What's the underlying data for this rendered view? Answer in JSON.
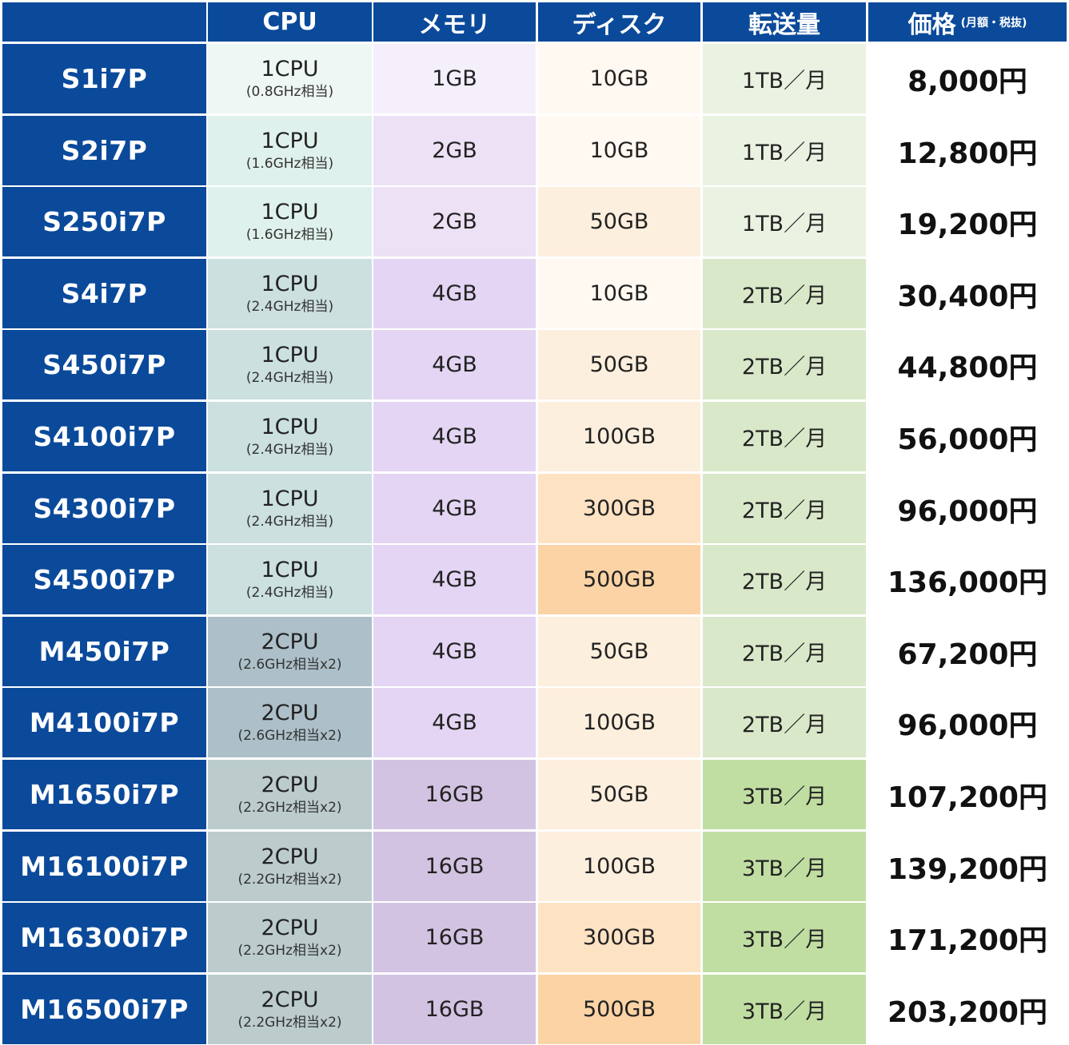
{
  "header": {
    "corner": "",
    "cpu": "CPU",
    "memory": "メモリ",
    "disk": "ディスク",
    "transfer": "転送量",
    "price": "価格",
    "price_note": "(月額・税抜)"
  },
  "colors": {
    "header_bg": "#0b4a9a",
    "header_text": "#ffffff",
    "name_bg": "#0b4a9a",
    "price_bg": "#ffffff",
    "cpu_levels": [
      "#eef7f4",
      "#dff1ec",
      "#cbe0df",
      "#adc0c9",
      "#bccccd"
    ],
    "memory_levels": [
      "#f4effb",
      "#ece1f5",
      "#e3d5f3",
      "#d2c3e2"
    ],
    "disk_levels": [
      "#fff9f2",
      "#fdefdd",
      "#fde2c4",
      "#fbd3a5"
    ],
    "transfer_levels": [
      "#eaf2e2",
      "#d9e8c9",
      "#c1dea2"
    ]
  },
  "rows": [
    {
      "name": "S1i7P",
      "cpu": "1CPU",
      "cpu_note": "(0.8GHz相当)",
      "memory": "1GB",
      "disk": "10GB",
      "transfer": "1TB／月",
      "price": "8,000円",
      "cpu_level": 0,
      "memory_level": 0,
      "disk_level": 0,
      "transfer_level": 0
    },
    {
      "name": "S2i7P",
      "cpu": "1CPU",
      "cpu_note": "(1.6GHz相当)",
      "memory": "2GB",
      "disk": "10GB",
      "transfer": "1TB／月",
      "price": "12,800円",
      "cpu_level": 1,
      "memory_level": 1,
      "disk_level": 0,
      "transfer_level": 0
    },
    {
      "name": "S250i7P",
      "cpu": "1CPU",
      "cpu_note": "(1.6GHz相当)",
      "memory": "2GB",
      "disk": "50GB",
      "transfer": "1TB／月",
      "price": "19,200円",
      "cpu_level": 1,
      "memory_level": 1,
      "disk_level": 1,
      "transfer_level": 0
    },
    {
      "name": "S4i7P",
      "cpu": "1CPU",
      "cpu_note": "(2.4GHz相当)",
      "memory": "4GB",
      "disk": "10GB",
      "transfer": "2TB／月",
      "price": "30,400円",
      "cpu_level": 2,
      "memory_level": 2,
      "disk_level": 0,
      "transfer_level": 1
    },
    {
      "name": "S450i7P",
      "cpu": "1CPU",
      "cpu_note": "(2.4GHz相当)",
      "memory": "4GB",
      "disk": "50GB",
      "transfer": "2TB／月",
      "price": "44,800円",
      "cpu_level": 2,
      "memory_level": 2,
      "disk_level": 1,
      "transfer_level": 1
    },
    {
      "name": "S4100i7P",
      "cpu": "1CPU",
      "cpu_note": "(2.4GHz相当)",
      "memory": "4GB",
      "disk": "100GB",
      "transfer": "2TB／月",
      "price": "56,000円",
      "cpu_level": 2,
      "memory_level": 2,
      "disk_level": 1,
      "transfer_level": 1
    },
    {
      "name": "S4300i7P",
      "cpu": "1CPU",
      "cpu_note": "(2.4GHz相当)",
      "memory": "4GB",
      "disk": "300GB",
      "transfer": "2TB／月",
      "price": "96,000円",
      "cpu_level": 2,
      "memory_level": 2,
      "disk_level": 2,
      "transfer_level": 1
    },
    {
      "name": "S4500i7P",
      "cpu": "1CPU",
      "cpu_note": "(2.4GHz相当)",
      "memory": "4GB",
      "disk": "500GB",
      "transfer": "2TB／月",
      "price": "136,000円",
      "cpu_level": 2,
      "memory_level": 2,
      "disk_level": 3,
      "transfer_level": 1
    },
    {
      "name": "M450i7P",
      "cpu": "2CPU",
      "cpu_note": "(2.6GHz相当x2)",
      "memory": "4GB",
      "disk": "50GB",
      "transfer": "2TB／月",
      "price": "67,200円",
      "cpu_level": 3,
      "memory_level": 2,
      "disk_level": 1,
      "transfer_level": 1
    },
    {
      "name": "M4100i7P",
      "cpu": "2CPU",
      "cpu_note": "(2.6GHz相当x2)",
      "memory": "4GB",
      "disk": "100GB",
      "transfer": "2TB／月",
      "price": "96,000円",
      "cpu_level": 3,
      "memory_level": 2,
      "disk_level": 1,
      "transfer_level": 1
    },
    {
      "name": "M1650i7P",
      "cpu": "2CPU",
      "cpu_note": "(2.2GHz相当x2)",
      "memory": "16GB",
      "disk": "50GB",
      "transfer": "3TB／月",
      "price": "107,200円",
      "cpu_level": 4,
      "memory_level": 3,
      "disk_level": 1,
      "transfer_level": 2
    },
    {
      "name": "M16100i7P",
      "cpu": "2CPU",
      "cpu_note": "(2.2GHz相当x2)",
      "memory": "16GB",
      "disk": "100GB",
      "transfer": "3TB／月",
      "price": "139,200円",
      "cpu_level": 4,
      "memory_level": 3,
      "disk_level": 1,
      "transfer_level": 2
    },
    {
      "name": "M16300i7P",
      "cpu": "2CPU",
      "cpu_note": "(2.2GHz相当x2)",
      "memory": "16GB",
      "disk": "300GB",
      "transfer": "3TB／月",
      "price": "171,200円",
      "cpu_level": 4,
      "memory_level": 3,
      "disk_level": 2,
      "transfer_level": 2
    },
    {
      "name": "M16500i7P",
      "cpu": "2CPU",
      "cpu_note": "(2.2GHz相当x2)",
      "memory": "16GB",
      "disk": "500GB",
      "transfer": "3TB／月",
      "price": "203,200円",
      "cpu_level": 4,
      "memory_level": 3,
      "disk_level": 3,
      "transfer_level": 2
    }
  ]
}
